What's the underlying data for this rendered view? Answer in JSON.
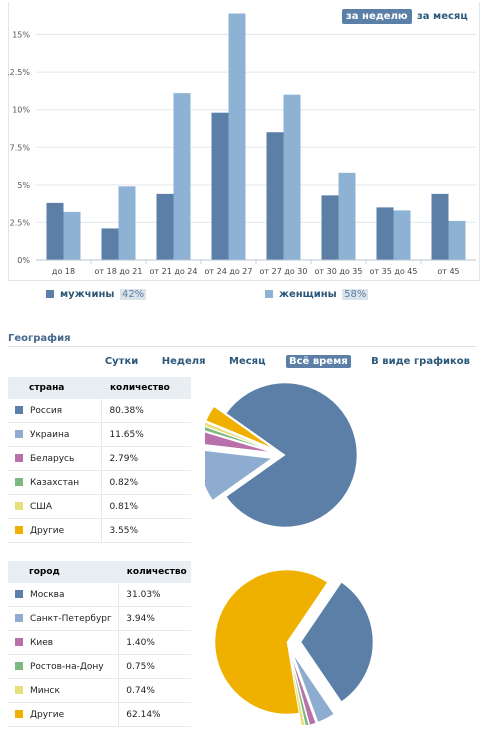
{
  "period_tabs": {
    "week": "за неделю",
    "month": "за месяц"
  },
  "chart_data": {
    "type": "bar",
    "categories": [
      "до 18",
      "от 18 до 21",
      "от 21 до 24",
      "от 24 до 27",
      "от 27 до 30",
      "от 30 до 35",
      "от 35 до 45",
      "от 45"
    ],
    "yticks": [
      "0%",
      "2.5%",
      "5%",
      "7.5%",
      "10%",
      ".2.5%",
      "15%"
    ],
    "ylim": [
      0,
      16.5
    ],
    "grid": true,
    "legend_position": "bottom",
    "series": [
      {
        "name": "мужчины",
        "pct_label": "42%",
        "color": "#5b7fa6",
        "values": [
          3.8,
          2.1,
          4.4,
          9.8,
          8.5,
          4.3,
          3.5,
          4.4
        ]
      },
      {
        "name": "женщины",
        "pct_label": "58%",
        "color": "#8eb2d3",
        "values": [
          3.2,
          4.9,
          11.1,
          16.4,
          11.0,
          5.8,
          3.3,
          2.6
        ]
      }
    ]
  },
  "geography": {
    "title": "География",
    "tabs": [
      {
        "label": "Сутки",
        "active": false
      },
      {
        "label": "Неделя",
        "active": false
      },
      {
        "label": "Месяц",
        "active": false
      },
      {
        "label": "Всё время",
        "active": true
      },
      {
        "label": "В виде графиков",
        "active": false
      }
    ],
    "countries": {
      "col_name": "страна",
      "col_qty": "количество",
      "rows": [
        {
          "name": "Россия",
          "value": "80.38%",
          "color": "#5b7fa6"
        },
        {
          "name": "Украина",
          "value": "11.65%",
          "color": "#8eabd0"
        },
        {
          "name": "Беларусь",
          "value": "2.79%",
          "color": "#b96fa9"
        },
        {
          "name": "Казахстан",
          "value": "0.82%",
          "color": "#7fb97f"
        },
        {
          "name": "США",
          "value": "0.81%",
          "color": "#e8e07a"
        },
        {
          "name": "Другие",
          "value": "3.55%",
          "color": "#f0b000"
        }
      ]
    },
    "cities": {
      "col_name": "город",
      "col_qty": "количество",
      "rows": [
        {
          "name": "Москва",
          "value": "31.03%",
          "color": "#5b7fa6"
        },
        {
          "name": "Санкт-Петербург",
          "value": "3.94%",
          "color": "#8eabd0"
        },
        {
          "name": "Киев",
          "value": "1.40%",
          "color": "#b96fa9"
        },
        {
          "name": "Ростов-на-Дону",
          "value": "0.75%",
          "color": "#7fb97f"
        },
        {
          "name": "Минск",
          "value": "0.74%",
          "color": "#e8e07a"
        },
        {
          "name": "Другие",
          "value": "62.14%",
          "color": "#f0b000"
        }
      ]
    }
  }
}
